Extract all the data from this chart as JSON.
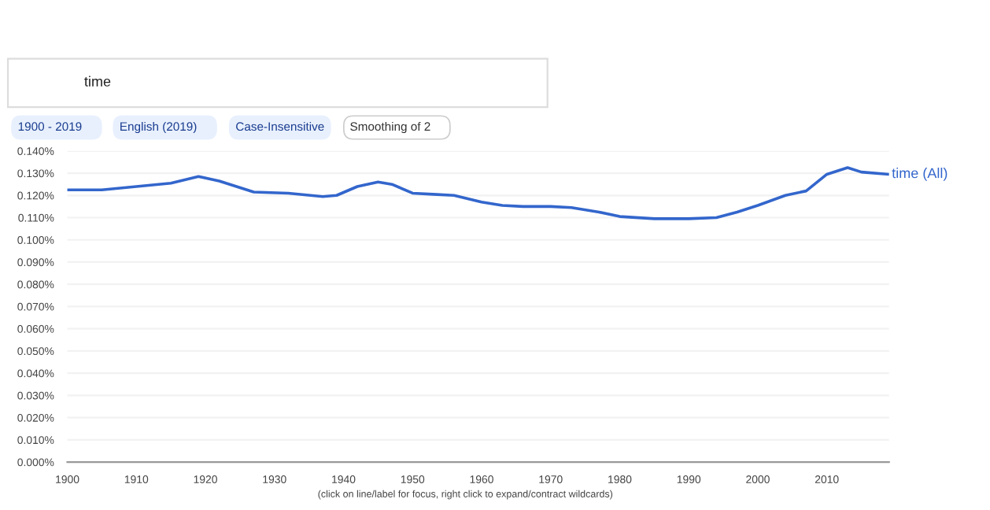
{
  "chart_data": {
    "type": "line",
    "annotations": [
      "time",
      "1900 - 2019",
      "English (2019)",
      "Case-Insensitive",
      "Smoothing of 2",
      "(click on line/label for focus, right click to expand/contract wildcards)"
    ],
    "x": [
      1900,
      1905,
      1910,
      1915,
      1919,
      1922,
      1927,
      1932,
      1937,
      1939,
      1942,
      1945,
      1947,
      1950,
      1953,
      1956,
      1960,
      1963,
      1966,
      1970,
      1973,
      1977,
      1980,
      1985,
      1990,
      1994,
      1997,
      2000,
      2004,
      2007,
      2010,
      2013,
      2015,
      2019
    ],
    "series": [
      {
        "name": "time (All)",
        "color": "#3366cc",
        "values": [
          0.1225,
          0.1225,
          0.124,
          0.1255,
          0.1285,
          0.1265,
          0.1215,
          0.121,
          0.1195,
          0.12,
          0.124,
          0.126,
          0.125,
          0.121,
          0.1205,
          0.12,
          0.117,
          0.1155,
          0.115,
          0.115,
          0.1145,
          0.1125,
          0.1105,
          0.1095,
          0.1095,
          0.11,
          0.1125,
          0.1155,
          0.12,
          0.122,
          0.1295,
          0.1325,
          0.1305,
          0.1295
        ]
      }
    ],
    "xlim": [
      1900,
      2019
    ],
    "xticks": [
      1900,
      1910,
      1920,
      1930,
      1940,
      1950,
      1960,
      1970,
      1980,
      1990,
      2000,
      2010
    ],
    "ylim": [
      0,
      0.14
    ],
    "yticks": [
      {
        "value": 0,
        "label": "0.000%"
      },
      {
        "value": 0.01,
        "label": "0.010%"
      },
      {
        "value": 0.02,
        "label": "0.020%"
      },
      {
        "value": 0.03,
        "label": "0.030%"
      },
      {
        "value": 0.04,
        "label": "0.040%"
      },
      {
        "value": 0.05,
        "label": "0.050%"
      },
      {
        "value": 0.06,
        "label": "0.060%"
      },
      {
        "value": 0.07,
        "label": "0.070%"
      },
      {
        "value": 0.08,
        "label": "0.080%"
      },
      {
        "value": 0.09,
        "label": "0.090%"
      },
      {
        "value": 0.1,
        "label": "0.100%"
      },
      {
        "value": 0.11,
        "label": "0.110%"
      },
      {
        "value": 0.12,
        "label": "0.120%"
      },
      {
        "value": 0.13,
        "label": "0.130%"
      },
      {
        "value": 0.14,
        "label": "0.140%"
      }
    ],
    "grid": "y",
    "legend": false,
    "marker": "none",
    "line_style": "solid"
  }
}
